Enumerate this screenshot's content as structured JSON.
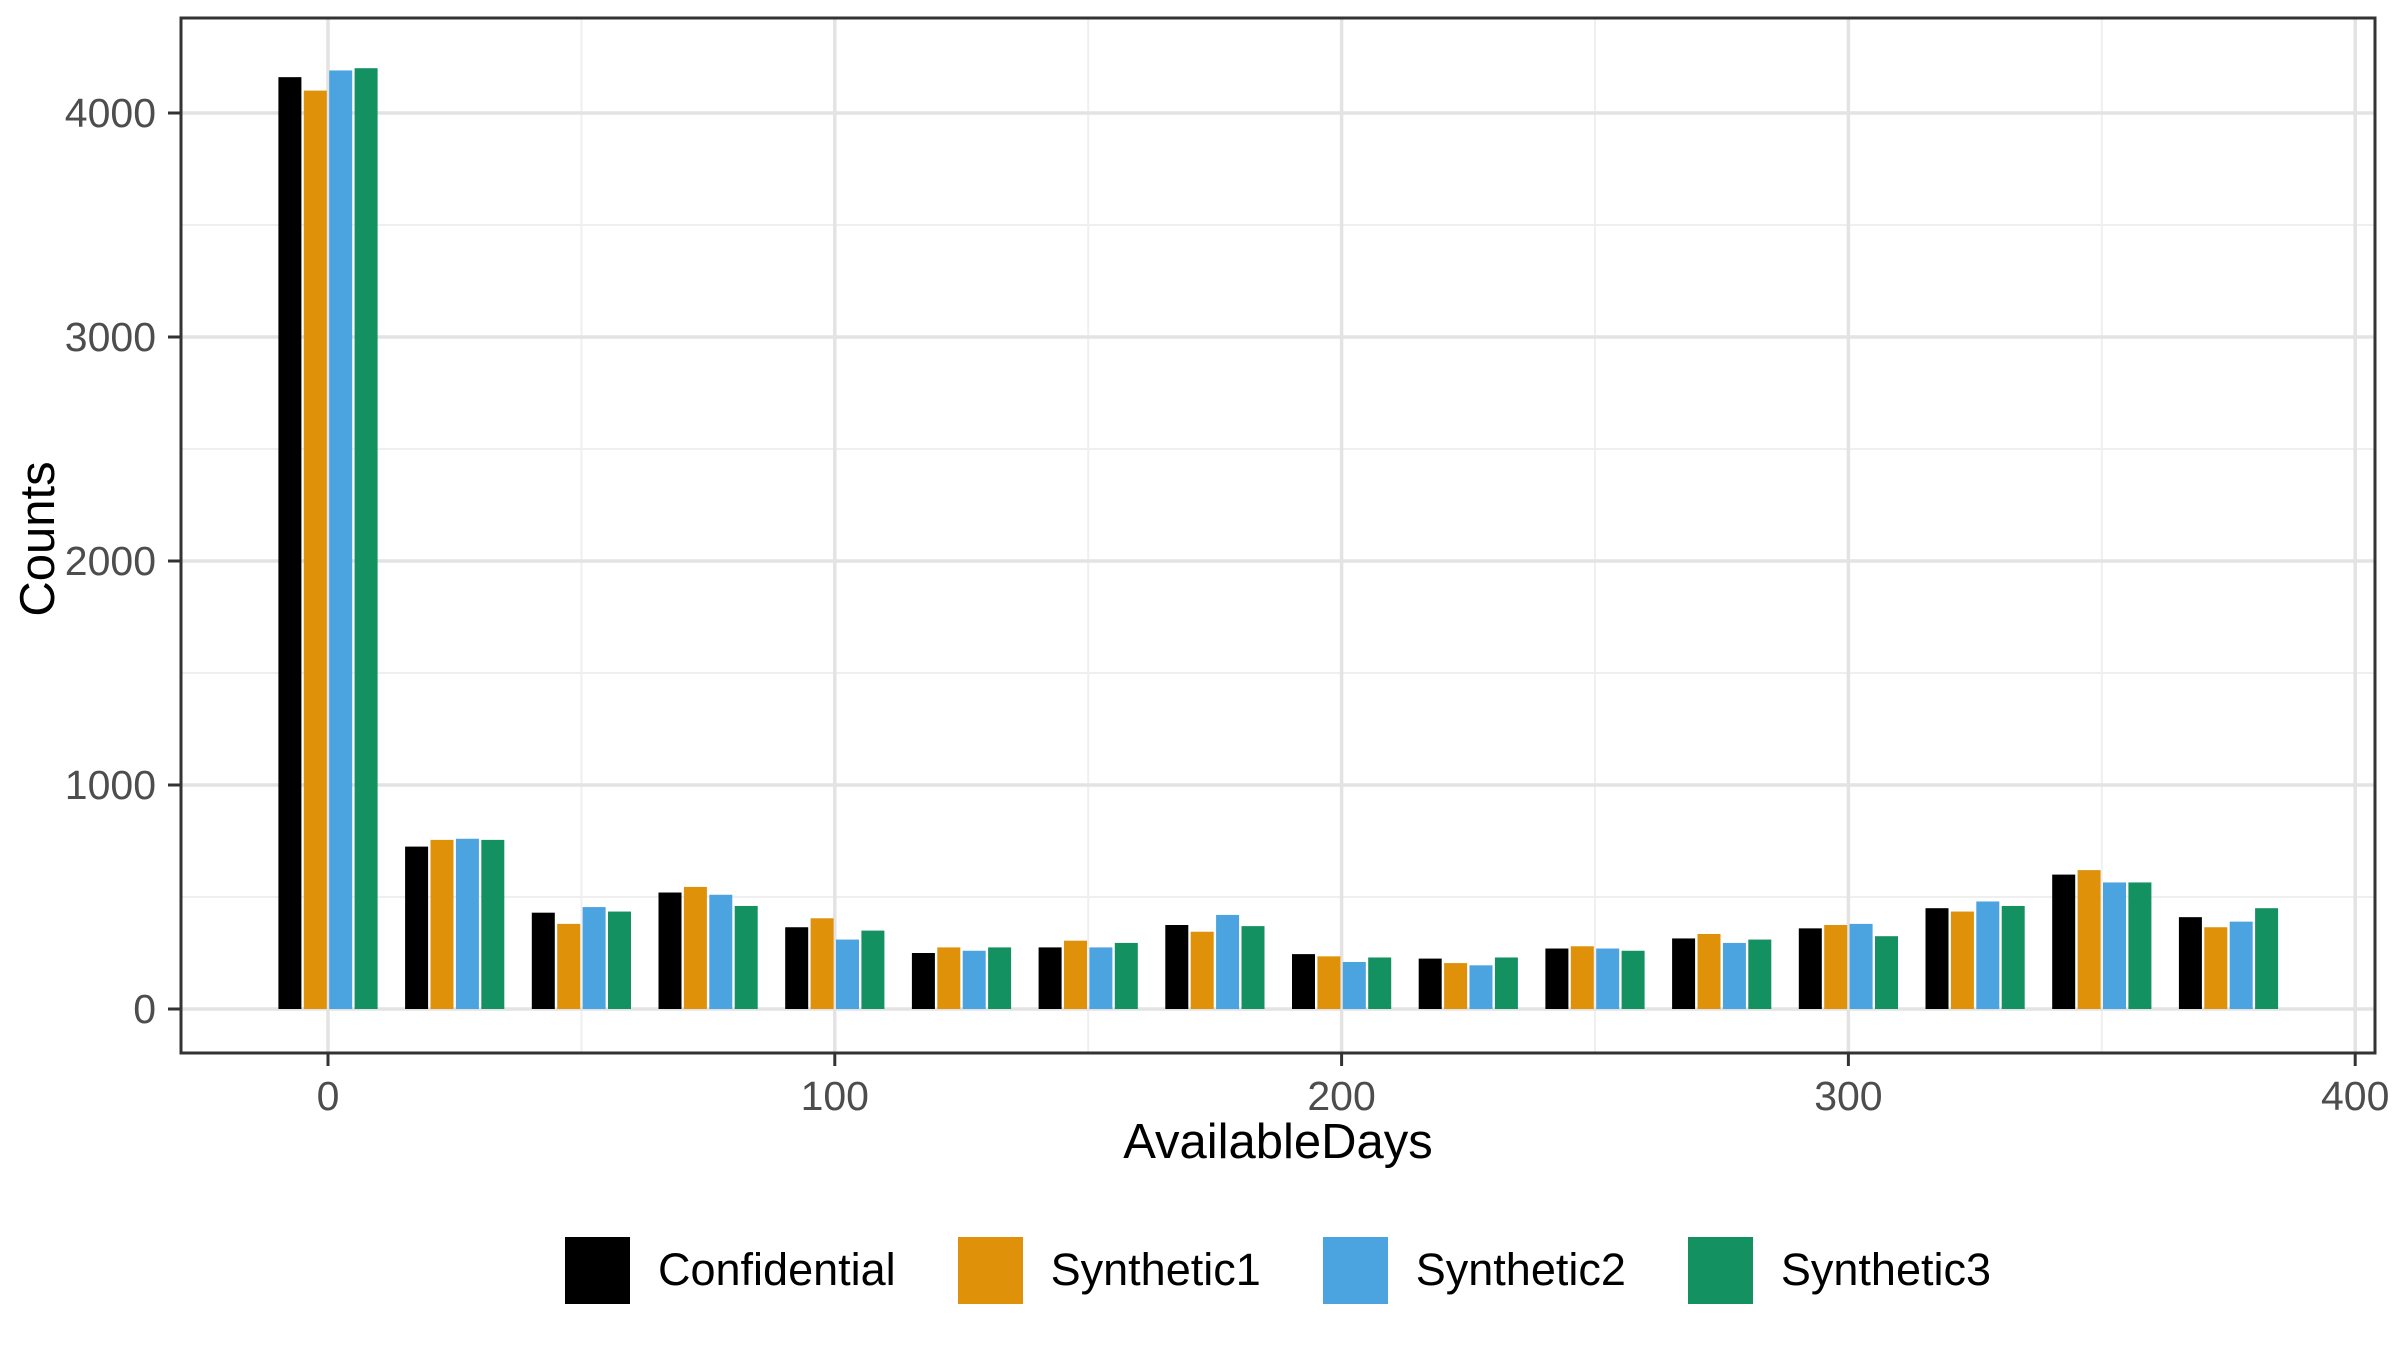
{
  "chart_data": {
    "type": "bar",
    "title": "",
    "xlabel": "AvailableDays",
    "ylabel": "Counts",
    "bin_width": 25,
    "categories": [
      0,
      25,
      50,
      75,
      100,
      125,
      150,
      175,
      200,
      225,
      250,
      275,
      300,
      325,
      350,
      375
    ],
    "series": [
      {
        "name": "Confidential",
        "color": "#000000",
        "values": [
          4160,
          725,
          430,
          520,
          365,
          250,
          275,
          375,
          245,
          225,
          270,
          315,
          360,
          450,
          600,
          410
        ]
      },
      {
        "name": "Synthetic1",
        "color": "#DF9109",
        "values": [
          4100,
          755,
          380,
          545,
          405,
          275,
          305,
          345,
          235,
          205,
          280,
          335,
          375,
          435,
          620,
          365
        ]
      },
      {
        "name": "Synthetic2",
        "color": "#4BA3DF",
        "values": [
          4190,
          760,
          455,
          510,
          310,
          260,
          275,
          420,
          210,
          195,
          270,
          295,
          380,
          480,
          565,
          390
        ]
      },
      {
        "name": "Synthetic3",
        "color": "#149160",
        "values": [
          4200,
          755,
          435,
          460,
          350,
          275,
          295,
          370,
          230,
          230,
          260,
          310,
          325,
          460,
          565,
          450
        ]
      }
    ],
    "x_ticks": [
      0,
      100,
      200,
      300,
      400
    ],
    "y_ticks": [
      0,
      1000,
      2000,
      3000,
      4000
    ],
    "x_minor_gridlines": [
      50,
      150,
      250,
      350
    ],
    "y_minor_gridlines": [
      500,
      1500,
      2500,
      3500
    ],
    "xlim": [
      -29,
      404
    ],
    "ylim": [
      0,
      4420
    ],
    "grid": "major+minor",
    "legend_position": "bottom"
  },
  "colors": {
    "background": "#FFFFFF",
    "panel_border": "#333333",
    "grid_major": "#E3E3E3",
    "grid_minor": "#EFEFEF",
    "tick_mark": "#333333",
    "tick_label": "#4D4D4D",
    "axis_title": "#000000"
  }
}
